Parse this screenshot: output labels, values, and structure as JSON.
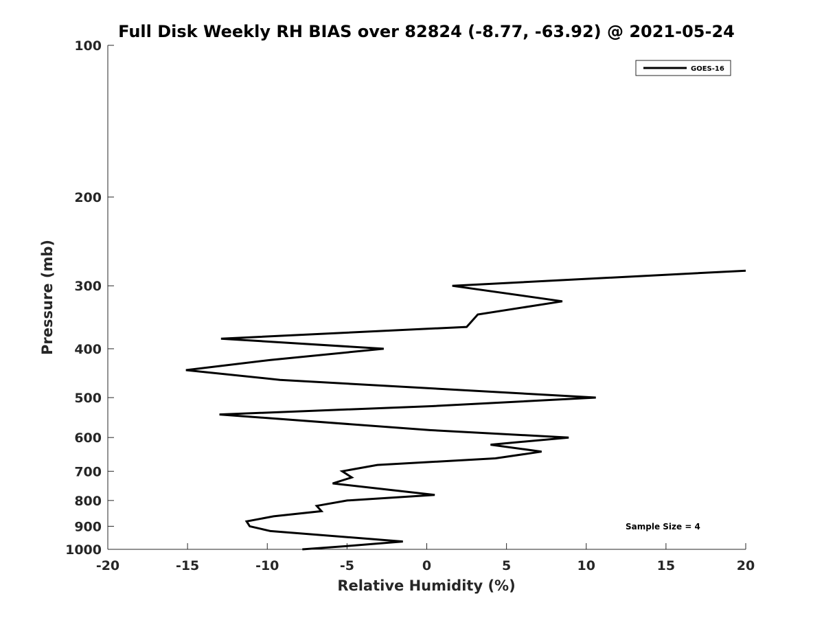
{
  "chart_data": {
    "type": "line",
    "title": "Full Disk Weekly RH BIAS over 82824 (-8.77, -63.92) @ 2021-05-24",
    "xlabel": "Relative Humidity (%)",
    "ylabel": "Pressure (mb)",
    "xlim": [
      -20,
      20
    ],
    "ylim": [
      100,
      1000
    ],
    "y_scale": "log",
    "y_reversed": true,
    "x_ticks": [
      -20,
      -15,
      -10,
      -5,
      0,
      5,
      10,
      15,
      20
    ],
    "y_ticks": [
      100,
      200,
      300,
      400,
      500,
      600,
      700,
      800,
      900,
      1000
    ],
    "grid": false,
    "legend": "top-right",
    "annotation": "Sample Size = 4",
    "line_color": "#000000",
    "series": [
      {
        "name": "GOES-16",
        "points": [
          {
            "x": 20.0,
            "y": 280
          },
          {
            "x": 1.6,
            "y": 300
          },
          {
            "x": 8.5,
            "y": 322
          },
          {
            "x": 3.2,
            "y": 342
          },
          {
            "x": 2.5,
            "y": 362
          },
          {
            "x": -12.9,
            "y": 382
          },
          {
            "x": -2.7,
            "y": 400
          },
          {
            "x": -9.8,
            "y": 421
          },
          {
            "x": -15.1,
            "y": 441
          },
          {
            "x": -9.2,
            "y": 461
          },
          {
            "x": 10.6,
            "y": 500
          },
          {
            "x": 0.3,
            "y": 520
          },
          {
            "x": -13.0,
            "y": 540
          },
          {
            "x": 0.2,
            "y": 580
          },
          {
            "x": 8.9,
            "y": 600
          },
          {
            "x": 4.0,
            "y": 620
          },
          {
            "x": 7.2,
            "y": 640
          },
          {
            "x": 4.3,
            "y": 660
          },
          {
            "x": -3.1,
            "y": 680
          },
          {
            "x": -5.3,
            "y": 700
          },
          {
            "x": -4.7,
            "y": 720
          },
          {
            "x": -5.9,
            "y": 740
          },
          {
            "x": 0.5,
            "y": 780
          },
          {
            "x": -5.0,
            "y": 800
          },
          {
            "x": -6.9,
            "y": 820
          },
          {
            "x": -6.6,
            "y": 840
          },
          {
            "x": -9.6,
            "y": 860
          },
          {
            "x": -11.3,
            "y": 880
          },
          {
            "x": -11.1,
            "y": 900
          },
          {
            "x": -9.8,
            "y": 920
          },
          {
            "x": -1.5,
            "y": 965
          },
          {
            "x": -5.0,
            "y": 985
          },
          {
            "x": -7.8,
            "y": 1000
          }
        ]
      }
    ]
  }
}
